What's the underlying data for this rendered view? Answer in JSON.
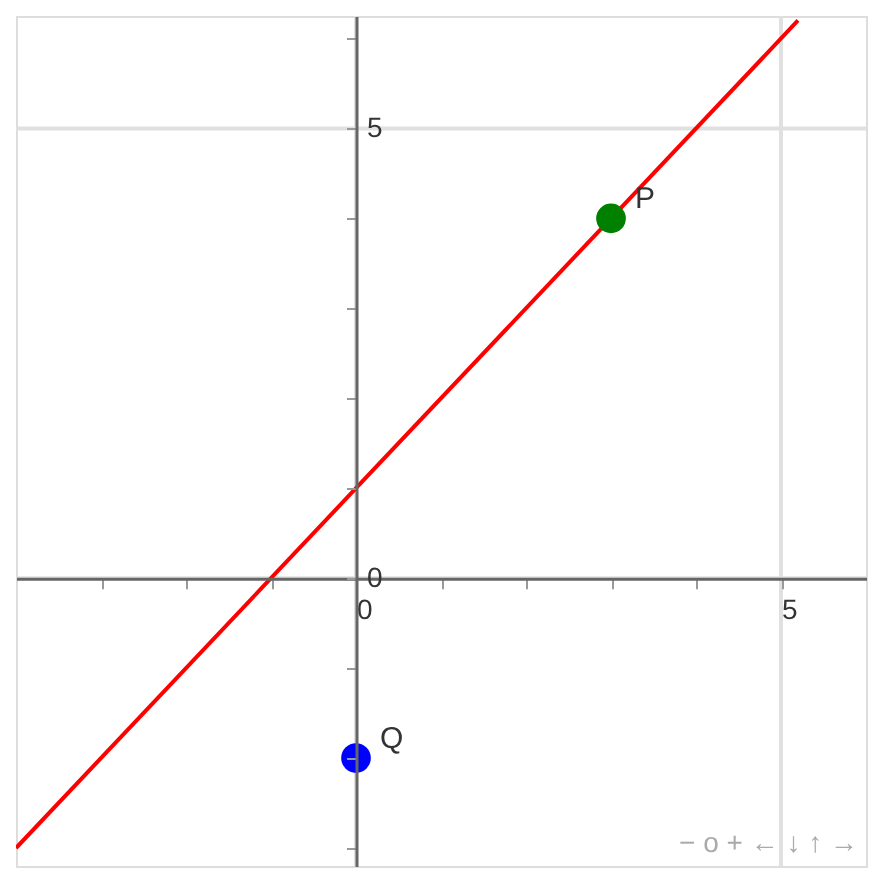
{
  "chart_data": {
    "type": "scatter",
    "xlim": [
      -4,
      6
    ],
    "ylim": [
      -3.2,
      6.25
    ],
    "xticks": [
      {
        "value": -3,
        "label": null
      },
      {
        "value": -2,
        "label": null
      },
      {
        "value": -1,
        "label": null
      },
      0,
      {
        "value": 1,
        "label": null
      },
      {
        "value": 2,
        "label": null
      },
      {
        "value": 3,
        "label": null
      },
      {
        "value": 4,
        "label": null
      },
      5
    ],
    "yticks": [
      {
        "value": -3,
        "label": null
      },
      {
        "value": -2,
        "label": null
      },
      {
        "value": -1,
        "label": null
      },
      0,
      {
        "value": 1,
        "label": null
      },
      {
        "value": 2,
        "label": null
      },
      {
        "value": 3,
        "label": null
      },
      {
        "value": 4,
        "label": null
      },
      5,
      {
        "value": 6,
        "label": null
      }
    ],
    "grid": true,
    "series": [
      {
        "type": "line",
        "line_style": "solid",
        "color": "#ff0000",
        "x": [
          -4,
          -1,
          0,
          5.2
        ],
        "values": [
          -3,
          0,
          1,
          6.2
        ]
      },
      {
        "name": "P",
        "color": "#008000",
        "x": [
          3
        ],
        "values": [
          4
        ],
        "marker": "circle"
      },
      {
        "name": "Q",
        "color": "#0000ff",
        "x": [
          0
        ],
        "values": [
          -2
        ],
        "marker": "circle"
      }
    ],
    "annotations": [
      "− o + ← ↓ ↑ →"
    ]
  }
}
